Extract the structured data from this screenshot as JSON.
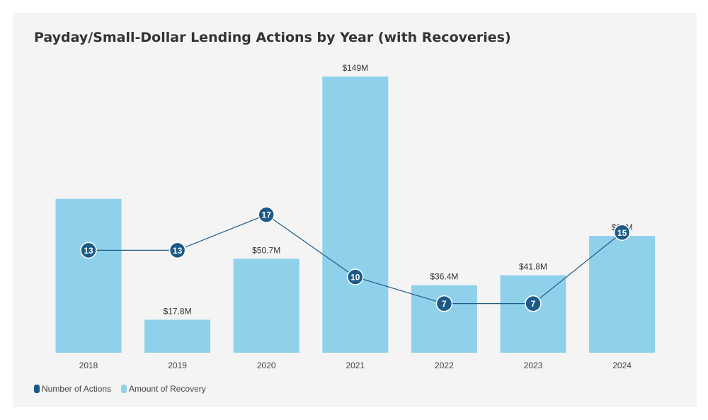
{
  "chart_data": {
    "type": "bar",
    "title": "Payday/Small-Dollar Lending Actions by Year (with Recoveries)",
    "categories": [
      "2018",
      "2019",
      "2020",
      "2021",
      "2022",
      "2023",
      "2024"
    ],
    "series": [
      {
        "name": "Amount of Recovery",
        "kind": "bar",
        "color": "#8fd1ea",
        "values": [
          83,
          17.8,
          50.7,
          149,
          36.4,
          41.8,
          63
        ],
        "labels": [
          "",
          "$17.8M",
          "$50.7M",
          "$149M",
          "$36.4M",
          "$41.8M",
          "$63M"
        ]
      },
      {
        "name": "Number of Actions",
        "kind": "line",
        "color": "#1c5a87",
        "values": [
          13,
          13,
          17,
          10,
          7,
          7,
          15
        ]
      }
    ],
    "xlabel": "",
    "ylabel": "",
    "grid": false,
    "legend": "bottom-left"
  }
}
